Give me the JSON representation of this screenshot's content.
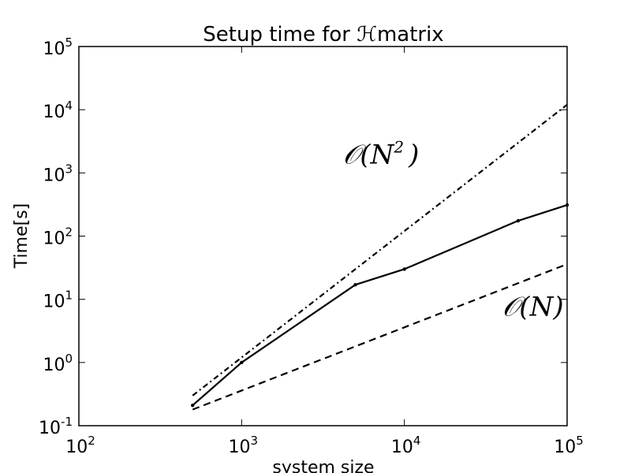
{
  "chart_data": {
    "type": "line",
    "title": "Setup time for ℋmatrix",
    "xlabel": "system size",
    "ylabel": "Time[s]",
    "xscale": "log",
    "yscale": "log",
    "xlim": [
      100,
      100000
    ],
    "ylim": [
      0.1,
      100000
    ],
    "grid": false,
    "x_ticks": [
      {
        "value": 100,
        "base": "10",
        "exp": "2"
      },
      {
        "value": 1000,
        "base": "10",
        "exp": "3"
      },
      {
        "value": 10000,
        "base": "10",
        "exp": "4"
      },
      {
        "value": 100000,
        "base": "10",
        "exp": "5"
      }
    ],
    "y_ticks": [
      {
        "value": 0.1,
        "base": "10",
        "exp": "-1"
      },
      {
        "value": 1,
        "base": "10",
        "exp": "0"
      },
      {
        "value": 10,
        "base": "10",
        "exp": "1"
      },
      {
        "value": 100,
        "base": "10",
        "exp": "2"
      },
      {
        "value": 1000,
        "base": "10",
        "exp": "3"
      },
      {
        "value": 10000,
        "base": "10",
        "exp": "4"
      },
      {
        "value": 100000,
        "base": "10",
        "exp": "5"
      }
    ],
    "series": [
      {
        "style": "solid",
        "markers": true,
        "x": [
          500,
          1000,
          5000,
          10000,
          50000,
          100000
        ],
        "y": [
          0.21,
          1.0,
          17,
          30,
          175,
          310
        ]
      },
      {
        "style": "dashdot",
        "markers": false,
        "x": [
          500,
          100000
        ],
        "y": [
          0.3,
          12000
        ]
      },
      {
        "style": "dashed",
        "markers": false,
        "x": [
          500,
          100000
        ],
        "y": [
          0.18,
          36
        ]
      }
    ],
    "annotations": [
      {
        "base": "𝒪(N",
        "exp": "2",
        "tail": ")",
        "x": 4200,
        "y": 1400
      },
      {
        "base": "𝒪(N)",
        "exp": "",
        "tail": "",
        "x": 40000,
        "y": 5.5
      }
    ]
  }
}
